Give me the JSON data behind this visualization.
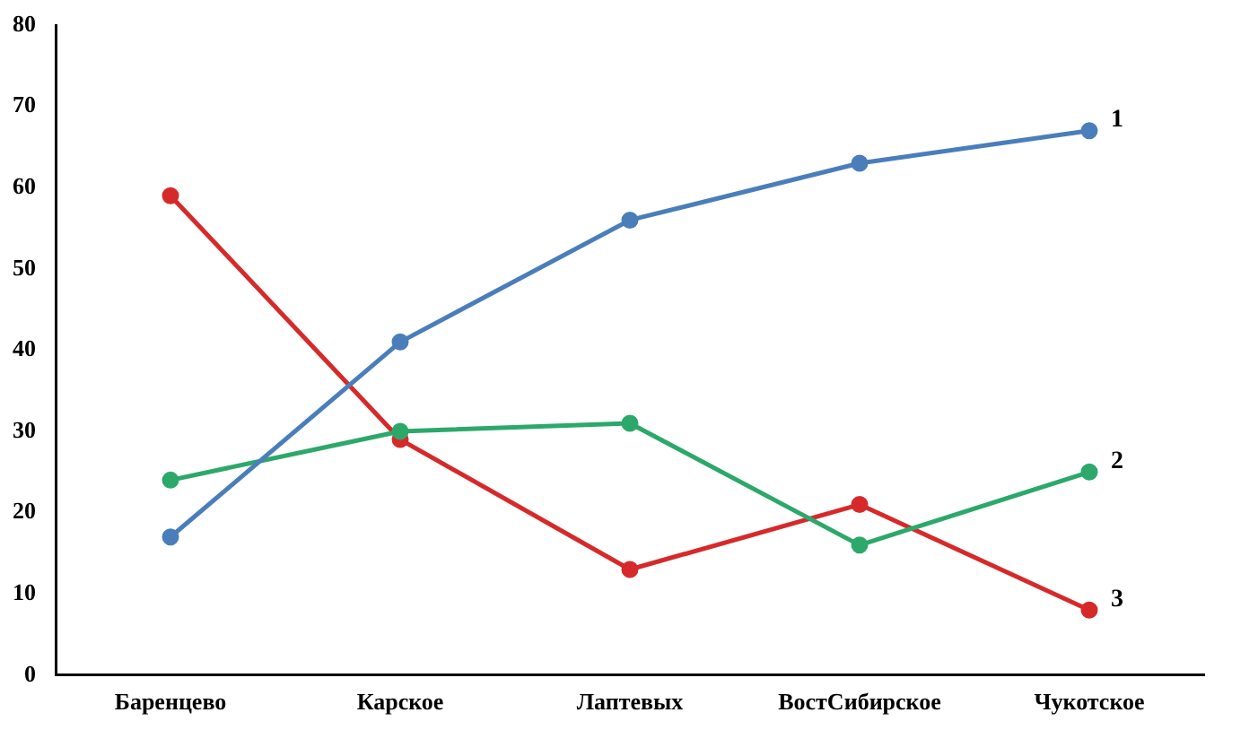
{
  "chart_data": {
    "type": "line",
    "categories": [
      "Баренцево",
      "Карское",
      "Лаптевых",
      "ВостСибирское",
      "Чукотское"
    ],
    "series": [
      {
        "name": "1",
        "color": "#4a7ebb",
        "values": [
          17,
          41,
          56,
          63,
          67
        ]
      },
      {
        "name": "2",
        "color": "#2ca86a",
        "values": [
          24,
          30,
          31,
          16,
          25
        ]
      },
      {
        "name": "3",
        "color": "#d62a2a",
        "values": [
          59,
          29,
          13,
          21,
          8
        ]
      }
    ],
    "ylim": [
      0,
      80
    ],
    "yticks": [
      0,
      10,
      20,
      30,
      40,
      50,
      60,
      70,
      80
    ],
    "grid": false,
    "legend": false,
    "marker": "circle",
    "line_style": "solid"
  }
}
